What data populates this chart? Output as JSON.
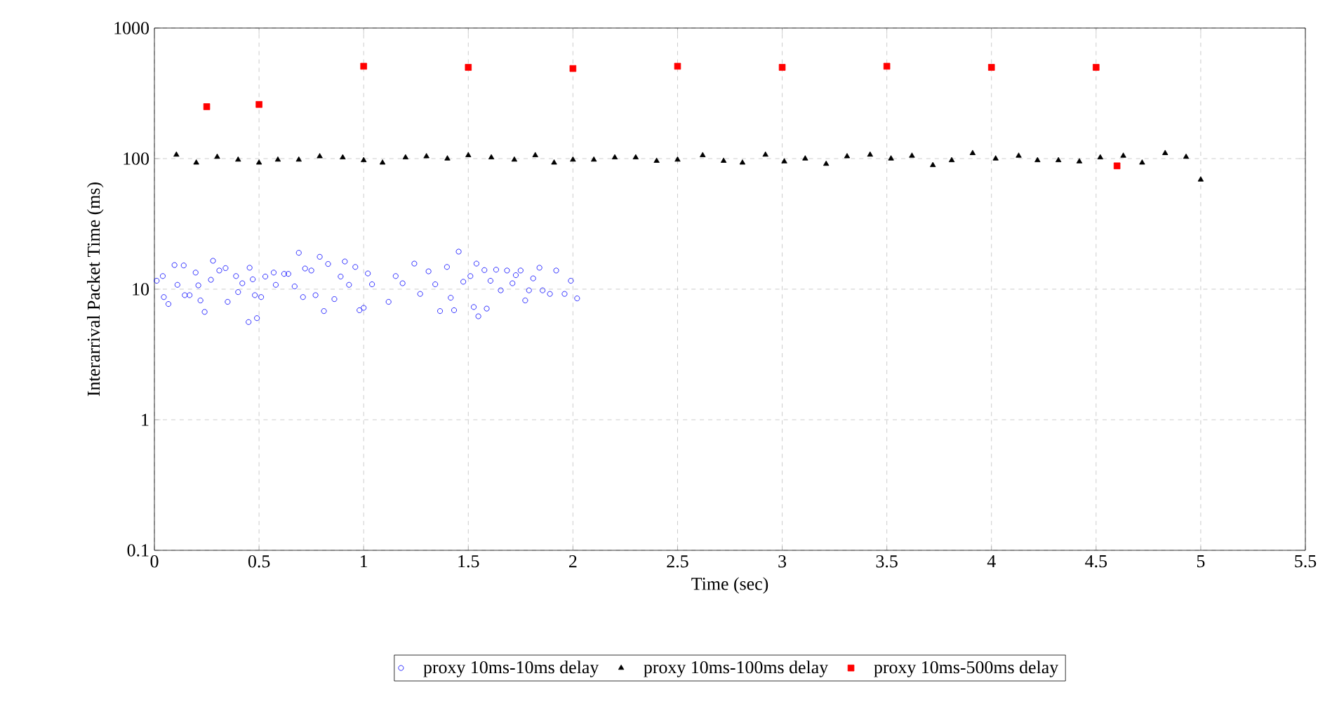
{
  "chart_data": {
    "type": "scatter",
    "xlabel": "Time (sec)",
    "ylabel": "Interarrival Packet Time (ms)",
    "xlim": [
      0,
      5.5
    ],
    "xticks": [
      0,
      0.5,
      1,
      1.5,
      2,
      2.5,
      3,
      3.5,
      4,
      4.5,
      5,
      5.5
    ],
    "ylim": [
      0.1,
      1000
    ],
    "yticks": [
      0.1,
      1,
      10,
      100,
      1000
    ],
    "log": "y",
    "grid": true,
    "legend": "bottom",
    "series": [
      {
        "name": "proxy 10ms-10ms delay",
        "color": "#0000ff",
        "marker": "circle",
        "x": [
          0.011,
          0.04,
          0.045,
          0.067,
          0.096,
          0.11,
          0.14,
          0.145,
          0.168,
          0.197,
          0.21,
          0.22,
          0.24,
          0.27,
          0.28,
          0.31,
          0.34,
          0.35,
          0.39,
          0.4,
          0.42,
          0.45,
          0.455,
          0.47,
          0.48,
          0.49,
          0.51,
          0.53,
          0.57,
          0.58,
          0.62,
          0.64,
          0.67,
          0.69,
          0.71,
          0.72,
          0.75,
          0.77,
          0.79,
          0.81,
          0.83,
          0.86,
          0.89,
          0.91,
          0.93,
          0.96,
          0.98,
          1.0,
          1.02,
          1.04,
          1.119,
          1.153,
          1.186,
          1.242,
          1.27,
          1.31,
          1.342,
          1.365,
          1.398,
          1.416,
          1.432,
          1.454,
          1.476,
          1.51,
          1.526,
          1.539,
          1.548,
          1.577,
          1.588,
          1.606,
          1.633,
          1.655,
          1.685,
          1.711,
          1.727,
          1.75,
          1.772,
          1.79,
          1.81,
          1.84,
          1.855,
          1.89,
          1.92,
          1.96,
          1.99,
          2.02
        ],
        "values": [
          11.6,
          12.6,
          8.7,
          7.7,
          15.3,
          10.8,
          15.2,
          9.0,
          9.0,
          13.4,
          10.7,
          8.2,
          6.7,
          11.8,
          16.5,
          13.9,
          14.5,
          8.0,
          12.6,
          9.5,
          11.1,
          5.6,
          14.6,
          11.9,
          9.0,
          6.0,
          8.7,
          12.5,
          13.4,
          10.8,
          13.1,
          13.1,
          10.5,
          19.0,
          8.7,
          14.4,
          13.9,
          9.0,
          17.7,
          6.8,
          15.6,
          8.4,
          12.5,
          16.3,
          10.8,
          14.8,
          6.9,
          7.2,
          13.2,
          10.9,
          8.0,
          12.6,
          11.1,
          15.7,
          9.2,
          13.7,
          10.9,
          6.8,
          14.8,
          8.6,
          6.9,
          19.4,
          11.4,
          12.6,
          7.3,
          15.7,
          6.2,
          14.0,
          7.1,
          11.6,
          14.1,
          9.8,
          13.9,
          11.1,
          12.8,
          13.9,
          8.2,
          9.8,
          12.1,
          14.6,
          9.8,
          9.2,
          13.9,
          9.2,
          11.6,
          8.5
        ]
      },
      {
        "name": "proxy 10ms-100ms delay",
        "color": "#000000",
        "marker": "triangle",
        "x": [
          0.105,
          0.2,
          0.3,
          0.4,
          0.5,
          0.59,
          0.69,
          0.79,
          0.9,
          1.0,
          1.09,
          1.2,
          1.3,
          1.4,
          1.5,
          1.61,
          1.72,
          1.82,
          1.91,
          2.0,
          2.1,
          2.2,
          2.3,
          2.4,
          2.5,
          2.62,
          2.72,
          2.81,
          2.92,
          3.01,
          3.11,
          3.21,
          3.31,
          3.42,
          3.52,
          3.62,
          3.72,
          3.81,
          3.91,
          4.02,
          4.13,
          4.22,
          4.32,
          4.42,
          4.52,
          4.63,
          4.72,
          4.83,
          4.93,
          5.0
        ],
        "values": [
          107,
          93,
          103,
          98,
          93,
          98,
          98,
          104,
          102,
          97,
          93,
          102,
          104,
          100,
          106,
          102,
          98,
          106,
          93,
          98,
          98,
          102,
          102,
          96,
          98,
          106,
          96,
          93,
          107,
          95,
          100,
          91,
          104,
          107,
          100,
          105,
          89,
          97,
          110,
          100,
          105,
          97,
          97,
          95,
          102,
          105,
          93,
          110,
          103,
          69
        ]
      },
      {
        "name": "proxy 10ms-500ms delay",
        "color": "#ff0000",
        "marker": "square",
        "x": [
          0.25,
          0.5,
          1,
          1.5,
          2,
          2.5,
          3,
          3.5,
          4,
          4.5,
          4.6
        ],
        "values": [
          250,
          260,
          510,
          500,
          490,
          510,
          500,
          510,
          500,
          500,
          88
        ]
      }
    ]
  }
}
